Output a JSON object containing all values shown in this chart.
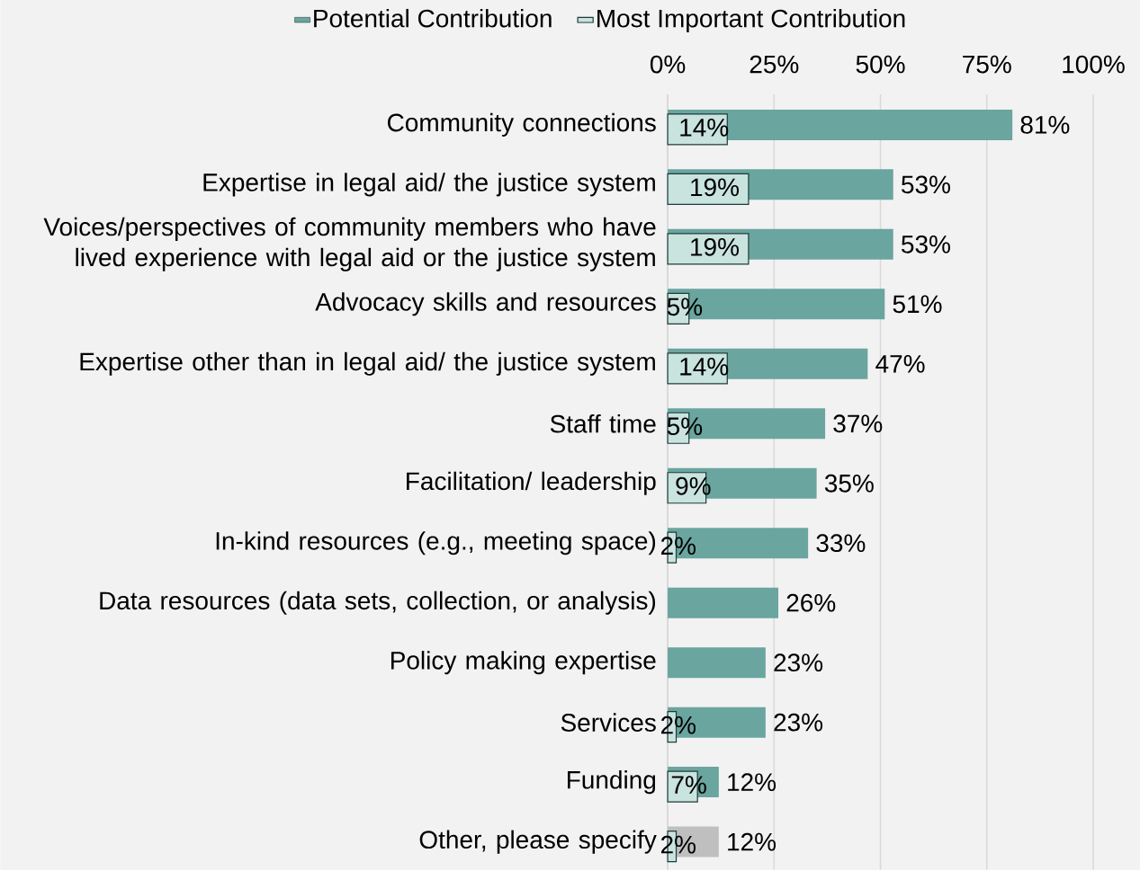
{
  "chart_data": {
    "type": "bar",
    "orientation": "horizontal",
    "grid": "x",
    "legend": "top",
    "categories": [
      "Community connections",
      "Expertise in legal aid/ the justice system",
      "Voices/perspectives of community members who have lived experience with legal aid or the justice system",
      "Advocacy skills and resources",
      "Expertise other than in legal aid/ the justice system",
      "Staff time",
      "Facilitation/ leadership",
      "In-kind resources (e.g., meeting space)",
      "Data resources (data sets, collection, or analysis)",
      "Policy making expertise",
      "Services",
      "Funding",
      "Other, please specify"
    ],
    "xlim": [
      0,
      100
    ],
    "xticks": [
      {
        "value": 0,
        "label": "0%"
      },
      {
        "value": 25,
        "label": "25%"
      },
      {
        "value": 50,
        "label": "50%"
      },
      {
        "value": 75,
        "label": "75%"
      },
      {
        "value": 100,
        "label": "100%"
      }
    ],
    "series": [
      {
        "name": "Potential Contribution",
        "color": "#6aa59f",
        "colors": [
          "#6aa59f",
          "#6aa59f",
          "#6aa59f",
          "#6aa59f",
          "#6aa59f",
          "#6aa59f",
          "#6aa59f",
          "#6aa59f",
          "#6aa59f",
          "#6aa59f",
          "#6aa59f",
          "#6aa59f",
          "#bfbfbf"
        ],
        "values": [
          81,
          53,
          53,
          51,
          47,
          37,
          35,
          33,
          26,
          23,
          23,
          12,
          12
        ],
        "value_labels": [
          "81%",
          "53%",
          "53%",
          "51%",
          "47%",
          "37%",
          "35%",
          "33%",
          "26%",
          "23%",
          "23%",
          "12%",
          "12%"
        ]
      },
      {
        "name": "Most Important Contribution",
        "color": "#c9e3df",
        "values": [
          14,
          19,
          19,
          5,
          14,
          5,
          9,
          2,
          null,
          null,
          2,
          7,
          2
        ],
        "value_labels": [
          "14%",
          "19%",
          "19%",
          "5%",
          "14%",
          "5%",
          "9%",
          "2%",
          null,
          null,
          "2%",
          "7%",
          "2%"
        ]
      }
    ]
  }
}
